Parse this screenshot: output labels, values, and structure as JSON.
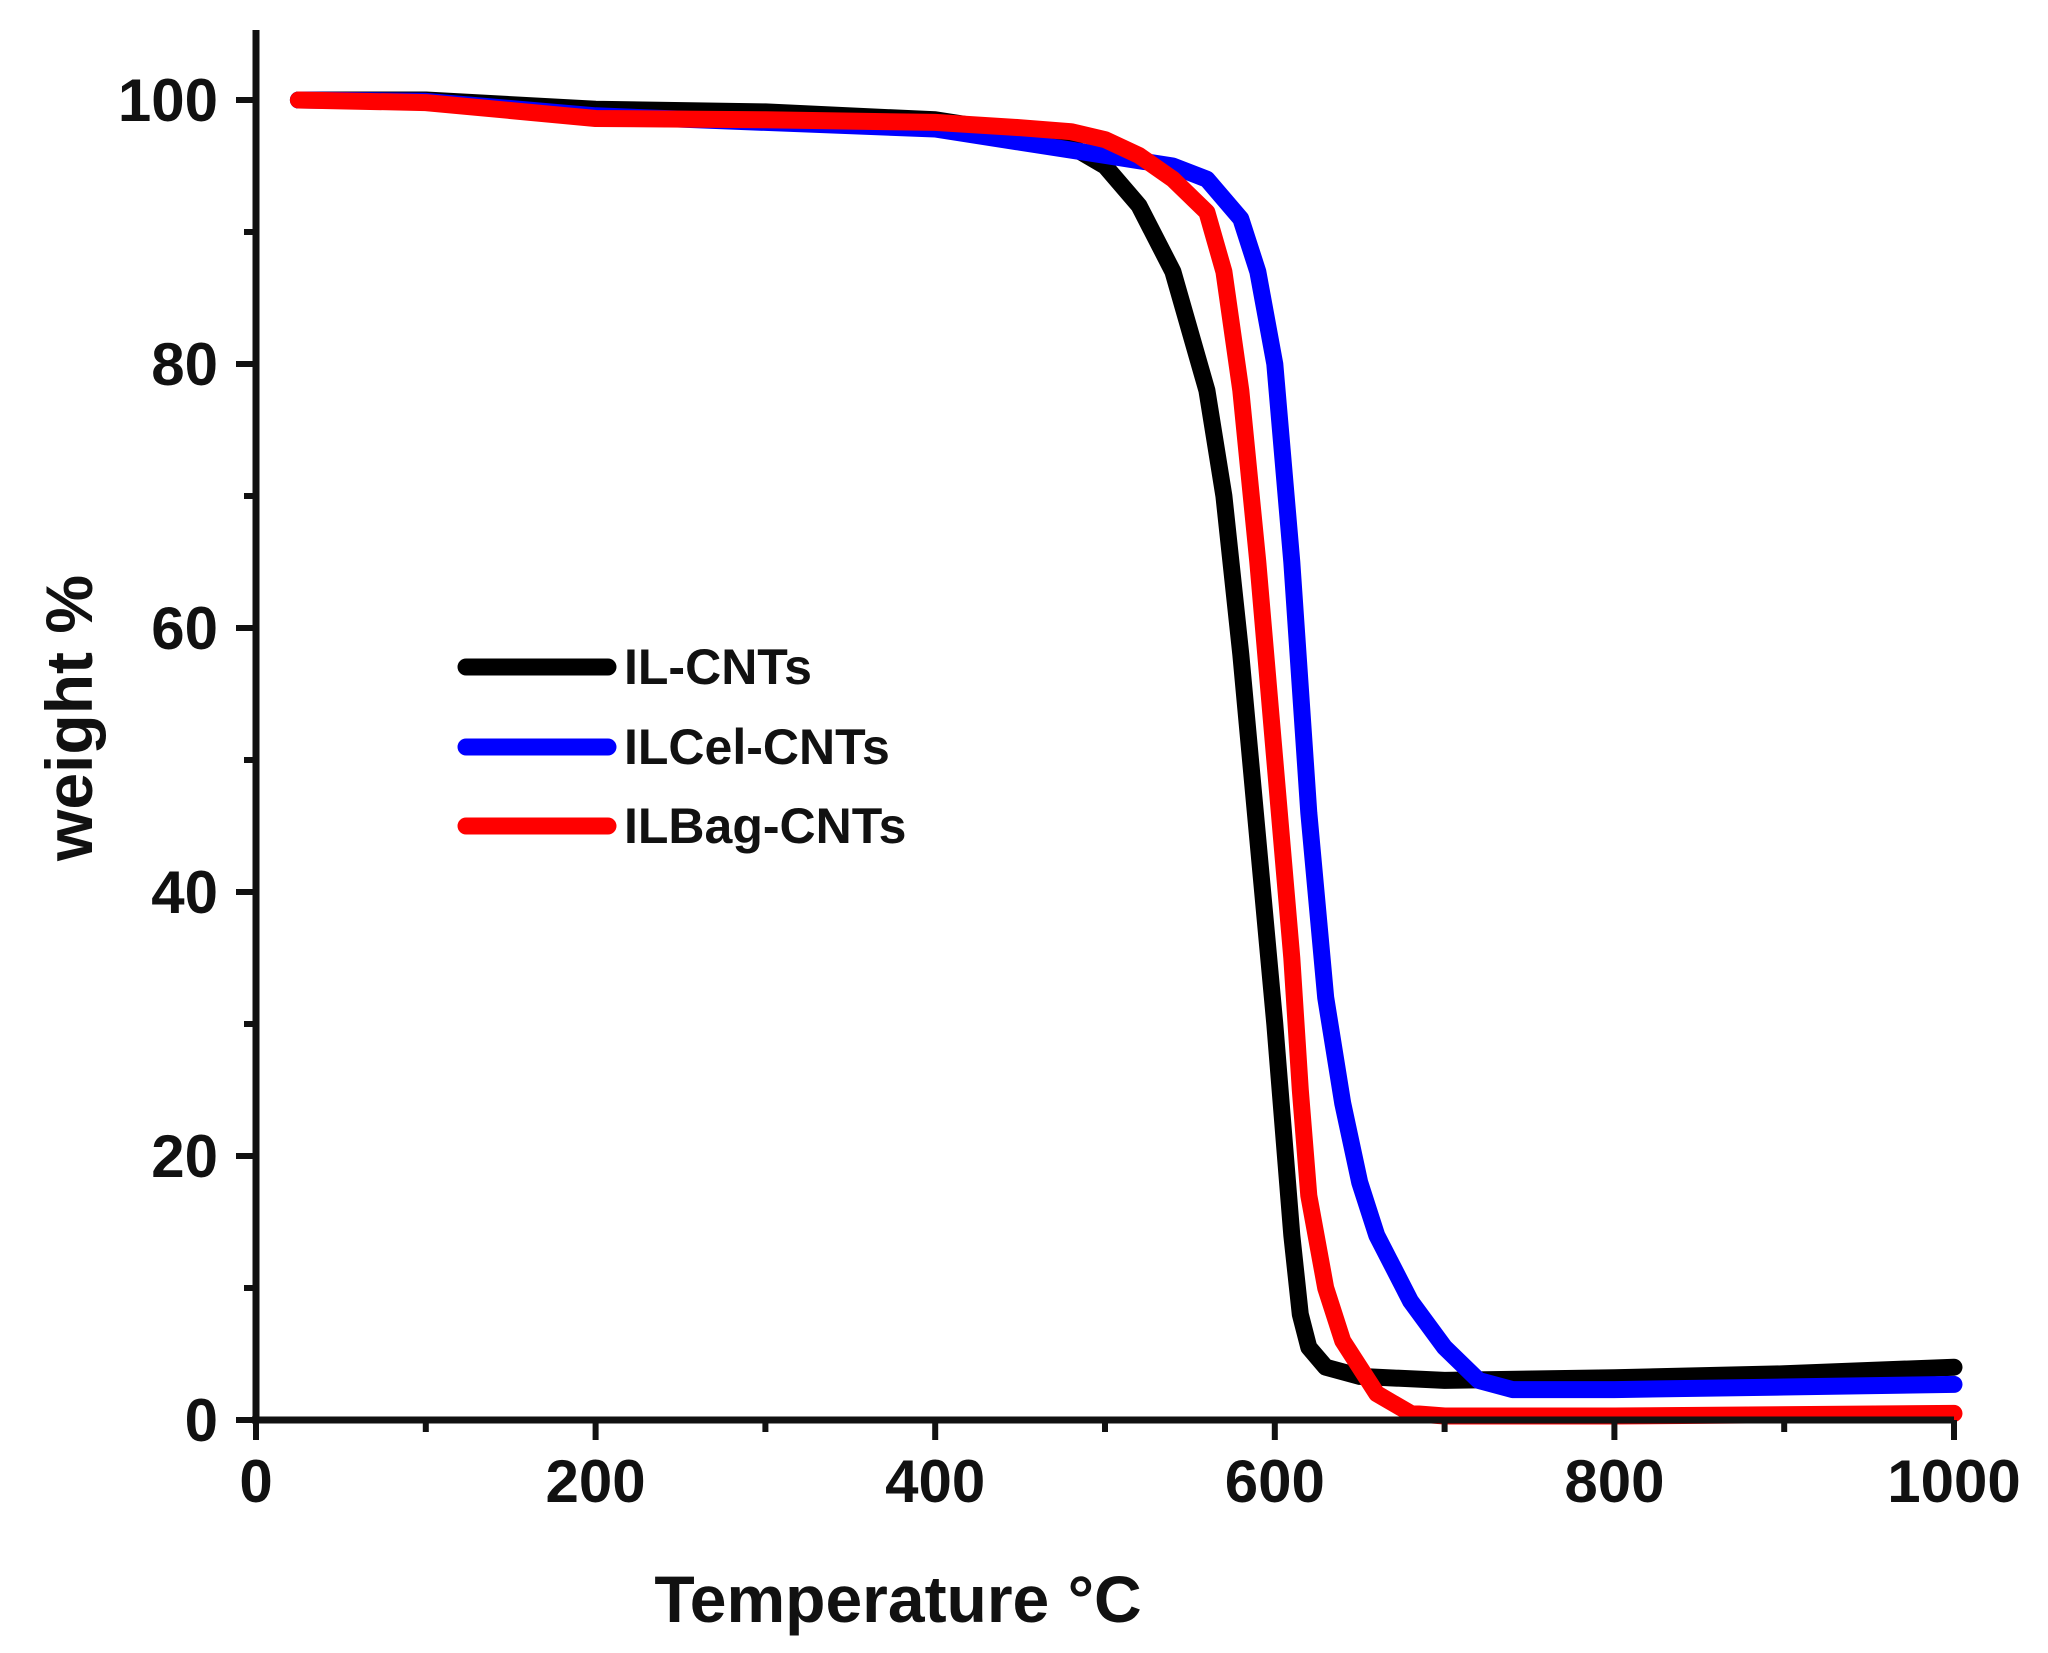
{
  "chart_data": {
    "type": "line",
    "title": "",
    "xlabel": "Temperature °C",
    "ylabel": "weight %",
    "xlim": [
      0,
      1000
    ],
    "ylim": [
      0,
      105
    ],
    "x_ticks": [
      0,
      200,
      400,
      600,
      800,
      1000
    ],
    "x_tick_labels": [
      "0",
      "200",
      "400",
      "600",
      "800",
      "1000"
    ],
    "x_minor_ticks": [
      100,
      300,
      500,
      700,
      900
    ],
    "y_ticks": [
      0,
      20,
      40,
      60,
      80,
      100
    ],
    "y_tick_labels": [
      "0",
      "20",
      "40",
      "60",
      "80",
      "100"
    ],
    "y_minor_ticks": [
      10,
      30,
      50,
      70,
      90
    ],
    "grid": false,
    "legend_position": "center-left",
    "series": [
      {
        "name": "IL-CNTs",
        "color": "#000000",
        "x": [
          25,
          100,
          200,
          300,
          400,
          450,
          480,
          500,
          520,
          540,
          560,
          570,
          580,
          590,
          600,
          610,
          615,
          620,
          630,
          650,
          700,
          800,
          900,
          1000
        ],
        "y": [
          100,
          100,
          99.3,
          99.1,
          98.5,
          97.5,
          96.5,
          95,
          92,
          87,
          78,
          70,
          58,
          44,
          30,
          14,
          8,
          5.5,
          4,
          3.3,
          3,
          3.2,
          3.5,
          4
        ]
      },
      {
        "name": "ILCel-CNTs",
        "color": "#0000ff",
        "x": [
          25,
          100,
          200,
          300,
          400,
          450,
          500,
          540,
          560,
          580,
          590,
          600,
          610,
          620,
          630,
          640,
          650,
          660,
          680,
          700,
          720,
          740,
          800,
          900,
          1000
        ],
        "y": [
          100,
          99.9,
          98.8,
          98.3,
          97.8,
          96.8,
          95.8,
          95,
          94,
          91,
          87,
          80,
          65,
          46,
          32,
          24,
          18,
          14,
          9,
          5.5,
          3,
          2.3,
          2.3,
          2.5,
          2.7
        ]
      },
      {
        "name": "ILBag-CNTs",
        "color": "#ff0000",
        "x": [
          25,
          100,
          200,
          300,
          400,
          450,
          480,
          500,
          520,
          540,
          560,
          570,
          580,
          590,
          600,
          610,
          615,
          620,
          630,
          640,
          660,
          680,
          700,
          800,
          1000
        ],
        "y": [
          100,
          99.8,
          98.6,
          98.5,
          98.3,
          97.9,
          97.6,
          97.0,
          95.8,
          94.0,
          91.5,
          87,
          78,
          65,
          50,
          35,
          25,
          17,
          10,
          6,
          2,
          0.5,
          0.3,
          0.3,
          0.5
        ]
      }
    ]
  }
}
